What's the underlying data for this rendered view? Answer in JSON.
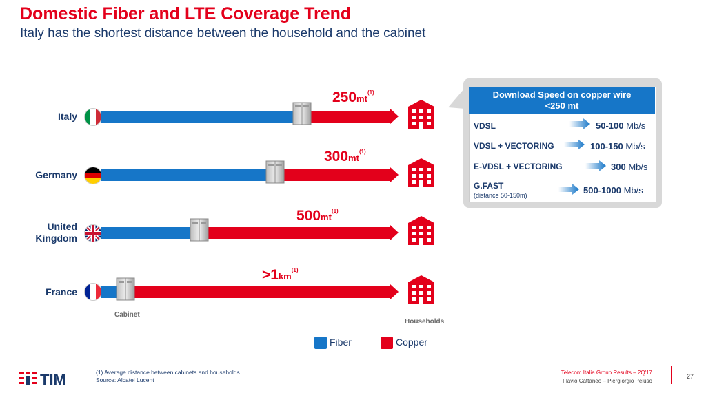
{
  "header": {
    "title": "Domestic Fiber and LTE Coverage Trend",
    "subtitle": "Italy has the shortest distance between the household and the cabinet"
  },
  "countries": [
    {
      "name": "Italy",
      "distance": "250",
      "unit": "mt",
      "note": "(1)"
    },
    {
      "name": "Germany",
      "distance": "300",
      "unit": "mt",
      "note": "(1)"
    },
    {
      "name": "United Kingdom",
      "name_line1": "United",
      "name_line2": "Kingdom",
      "distance": "500",
      "unit": "mt",
      "note": "(1)"
    },
    {
      "name": "France",
      "distance": ">1",
      "unit": "km",
      "note": "(1)"
    }
  ],
  "labels": {
    "cabinet": "Cabinet",
    "households": "Households"
  },
  "legend": {
    "fiber": "Fiber",
    "copper": "Copper",
    "fiber_color": "#1676c8",
    "copper_color": "#e3001b"
  },
  "speed_panel": {
    "title_line1": "Download Speed on copper wire",
    "title_line2": "<250 mt",
    "rows": [
      {
        "tech": "VDSL",
        "note": "",
        "speed": "50-100",
        "unit": "Mb/s"
      },
      {
        "tech": "VDSL + VECTORING",
        "note": "",
        "speed": "100-150",
        "unit": "Mb/s"
      },
      {
        "tech": "E-VDSL + VECTORING",
        "note": "",
        "speed": "300",
        "unit": "Mb/s"
      },
      {
        "tech": "G.FAST",
        "note": "(distance 50-150m)",
        "speed": "500-1000",
        "unit": "Mb/s"
      }
    ]
  },
  "footer": {
    "note_line1": "(1) Average distance between cabinets and households",
    "note_line2": "Source: Alcatel Lucent",
    "right_line1": "Telecom Italia  Group Results – 2Q'17",
    "right_line2": "Flavio Cattaneo – Piergiorgio Peluso",
    "page_number": "27",
    "logo_text": "TIM"
  }
}
